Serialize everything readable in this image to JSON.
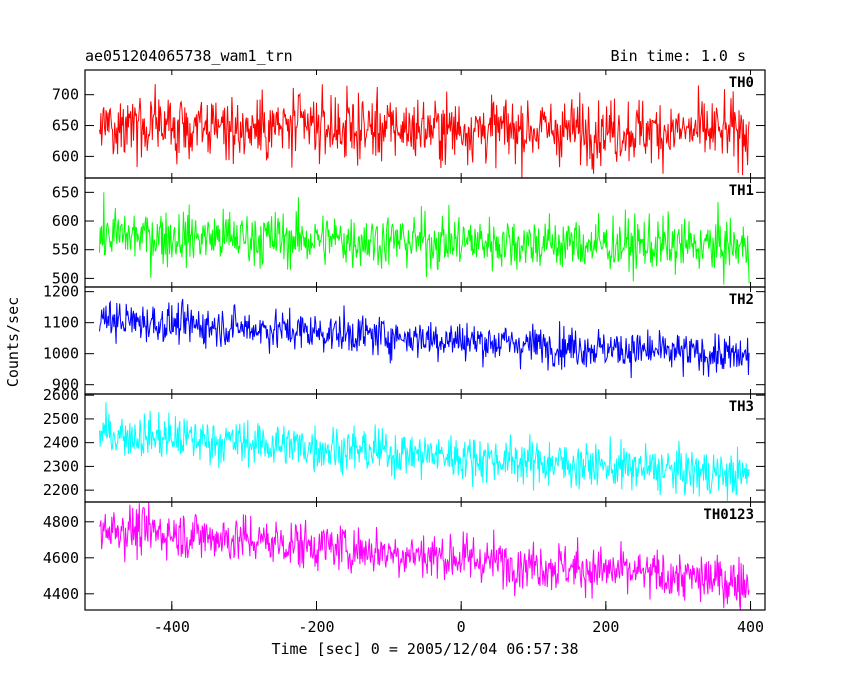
{
  "header": {
    "title": "ae051204065738_wam1_trn",
    "bin_time": "Bin time: 1.0 s"
  },
  "chart_data": {
    "type": "line",
    "xlabel": "Time [sec] 0 = 2005/12/04 06:57:38",
    "ylabel": "Counts/sec",
    "xlim": [
      -520,
      420
    ],
    "x_ticks": [
      -400,
      -200,
      0,
      200,
      400
    ],
    "x_range": [
      -500,
      398
    ],
    "x_step": 1,
    "panels": [
      {
        "name": "TH0",
        "color": "#ff0000",
        "ylim": [
          565,
          740
        ],
        "y_ticks": [
          600,
          650,
          700
        ],
        "trend": {
          "start": 650,
          "end": 640
        },
        "noise_sigma": 26
      },
      {
        "name": "TH1",
        "color": "#00ff00",
        "ylim": [
          485,
          675
        ],
        "y_ticks": [
          500,
          550,
          600,
          650
        ],
        "trend": {
          "start": 575,
          "end": 555
        },
        "noise_sigma": 24
      },
      {
        "name": "TH2",
        "color": "#0000ff",
        "ylim": [
          870,
          1215
        ],
        "y_ticks": [
          900,
          1000,
          1100,
          1200
        ],
        "trend": {
          "start": 1110,
          "end": 990
        },
        "noise_sigma": 32
      },
      {
        "name": "TH3",
        "color": "#00ffff",
        "ylim": [
          2150,
          2605
        ],
        "y_ticks": [
          2200,
          2300,
          2400,
          2500,
          2600
        ],
        "trend": {
          "start": 2440,
          "end": 2260
        },
        "noise_sigma": 48
      },
      {
        "name": "TH0123",
        "color": "#ff00ff",
        "ylim": [
          4310,
          4910
        ],
        "y_ticks": [
          4400,
          4600,
          4800
        ],
        "trend": {
          "start": 4770,
          "end": 4460
        },
        "noise_sigma": 68
      }
    ]
  }
}
